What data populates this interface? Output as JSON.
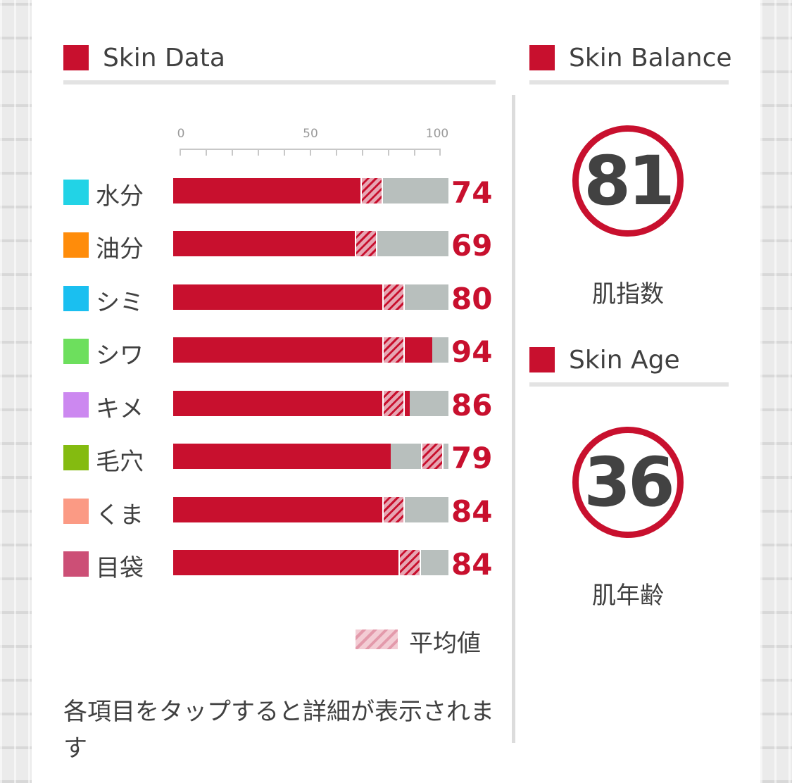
{
  "colors": {
    "accent": "#c8102e",
    "bar_bg": "#b8bfbd",
    "divider": "#e3e3e3"
  },
  "skin_data": {
    "title": "Skin Data",
    "scale_labels": [
      "0",
      "50",
      "100"
    ],
    "items": [
      {
        "label": "水分",
        "color": "#22d3e6",
        "value": "74",
        "score": 74,
        "average": 72
      },
      {
        "label": "油分",
        "color": "#ff8c0a",
        "value": "69",
        "score": 69,
        "average": 70
      },
      {
        "label": "シミ",
        "color": "#1abff0",
        "value": "80",
        "score": 80,
        "average": 80
      },
      {
        "label": "シワ",
        "color": "#6ddf5d",
        "value": "94",
        "score": 94,
        "average": 80
      },
      {
        "label": "キメ",
        "color": "#cc88f0",
        "value": "86",
        "score": 86,
        "average": 80
      },
      {
        "label": "毛穴",
        "color": "#84bb10",
        "value": "79",
        "score": 79,
        "average": 94
      },
      {
        "label": "くま",
        "color": "#fb9a84",
        "value": "84",
        "score": 84,
        "average": 80
      },
      {
        "label": "目袋",
        "color": "#cc4f76",
        "value": "84",
        "score": 84,
        "average": 86
      }
    ],
    "legend_label": "平均値",
    "hint": "各項目をタップすると詳細が表示されます"
  },
  "skin_balance": {
    "title": "Skin Balance",
    "value": "81",
    "caption": "肌指数"
  },
  "skin_age": {
    "title": "Skin Age",
    "value": "36",
    "caption": "肌年齢"
  }
}
